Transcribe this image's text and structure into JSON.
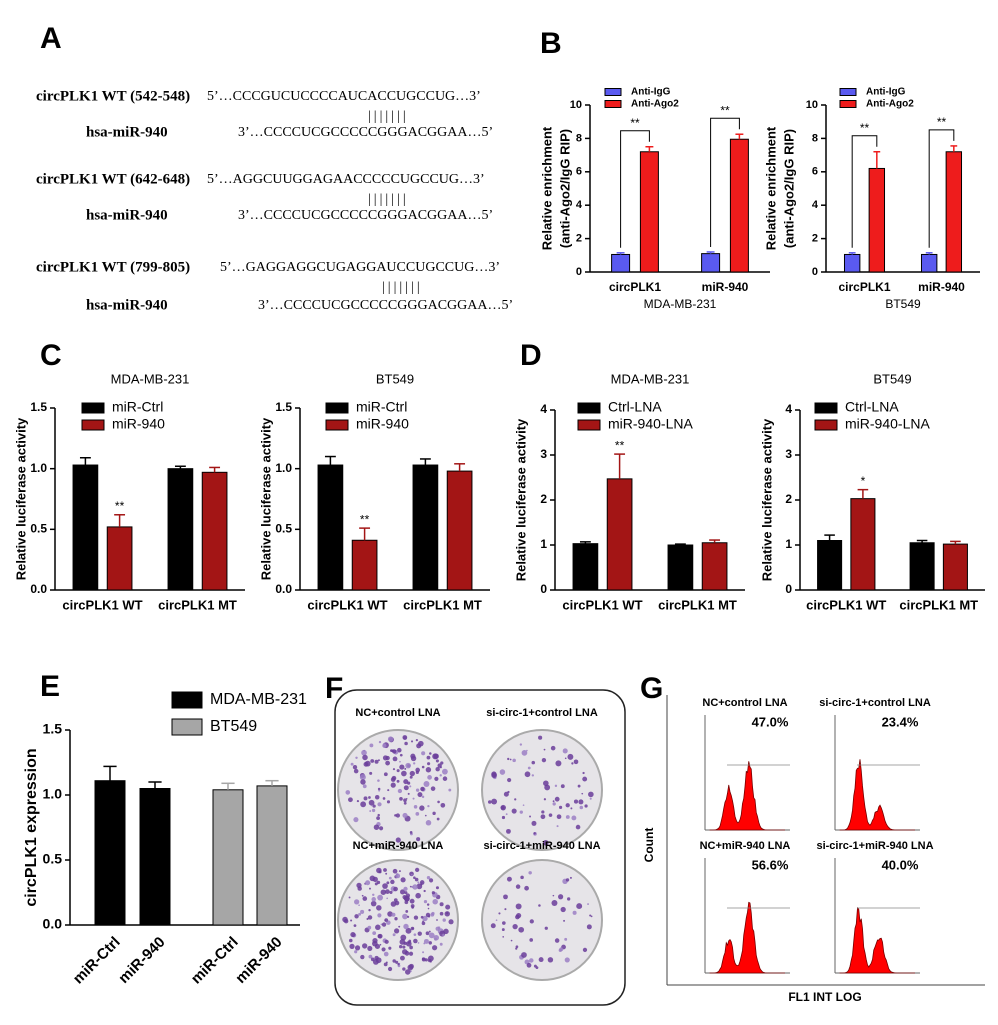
{
  "panel_labels": [
    "A",
    "B",
    "C",
    "D",
    "E",
    "F",
    "G"
  ],
  "sequences": [
    {
      "target": "circPLK1 WT (542-548)",
      "target_seq": "5’…CCCGUCUCCCCAUCACCUGCCUG…3’",
      "pairing": "|||||||",
      "mirna": "hsa-miR-940",
      "mirna_seq": "3’…CCCCUCGCCCCCGGGACGGAA…5’"
    },
    {
      "target": "circPLK1 WT (642-648)",
      "target_seq": "5’…AGGCUUGGAGAACCCCCUGCCUG…3’",
      "pairing": "|||||||",
      "mirna": "hsa-miR-940",
      "mirna_seq": "3’…CCCCUCGCCCCCGGGACGGAA…5’"
    },
    {
      "target": "circPLK1 WT (799-805)",
      "target_seq": "5’…GAGGAGGCUGAGGAUCCUGCCUG…3’",
      "pairing": "|||||||",
      "mirna": "hsa-miR-940",
      "mirna_seq": "3’…CCCCUCGCCCCCGGGACGGAA…5’"
    }
  ],
  "chart_data": [
    {
      "type": "bar",
      "xlabel": "MDA-MB-231",
      "ylabel": [
        "Relative enrichment",
        "(anti-Ago2/IgG RIP)"
      ],
      "categories": [
        "circPLK1",
        "miR-940"
      ],
      "ylim": [
        0,
        10
      ],
      "yticks": [
        0,
        2,
        4,
        6,
        8,
        10
      ],
      "series": [
        {
          "name": "Anti-IgG",
          "color": "#5a5af0",
          "values": [
            1.05,
            1.1
          ],
          "errors": [
            0.1,
            0.1
          ]
        },
        {
          "name": "Anti-Ago2",
          "color": "#ee1c1c",
          "values": [
            7.2,
            7.95
          ],
          "errors": [
            0.3,
            0.3
          ],
          "labels": [
            "**",
            "**"
          ]
        }
      ]
    },
    {
      "type": "bar",
      "xlabel": "BT549",
      "ylabel": [
        "Relative enrichment",
        "(anti-Ago2/IgG RIP)"
      ],
      "categories": [
        "circPLK1",
        "miR-940"
      ],
      "ylim": [
        0,
        10
      ],
      "yticks": [
        0,
        2,
        4,
        6,
        8,
        10
      ],
      "series": [
        {
          "name": "Anti-IgG",
          "color": "#5a5af0",
          "values": [
            1.05,
            1.05
          ],
          "errors": [
            0.1,
            0.1
          ]
        },
        {
          "name": "Anti-Ago2",
          "color": "#ee1c1c",
          "values": [
            6.2,
            7.2
          ],
          "errors": [
            1.0,
            0.35
          ],
          "labels": [
            "**",
            "**"
          ]
        }
      ]
    },
    {
      "type": "bar",
      "title": "MDA-MB-231",
      "ylabel": [
        "Relative luciferase activity"
      ],
      "categories": [
        "circPLK1 WT",
        "circPLK1 MT"
      ],
      "ylim": [
        0,
        1.5
      ],
      "yticks": [
        {
          "value": 0,
          "label": "0.0"
        },
        0.5,
        {
          "value": 1,
          "label": "1.0"
        },
        1.5
      ],
      "series": [
        {
          "name": "miR-Ctrl",
          "color": "#000000",
          "values": [
            1.03,
            1.0
          ],
          "errors": [
            0.06,
            0.02
          ]
        },
        {
          "name": "miR-940",
          "color": "#a31515",
          "values": [
            0.52,
            0.97
          ],
          "errors": [
            0.1,
            0.04
          ],
          "labels": [
            "**",
            null
          ]
        }
      ]
    },
    {
      "type": "bar",
      "title": "BT549",
      "ylabel": [
        "Relative luciferase activity"
      ],
      "categories": [
        "circPLK1 WT",
        "circPLK1 MT"
      ],
      "ylim": [
        0,
        1.5
      ],
      "yticks": [
        {
          "value": 0,
          "label": "0.0"
        },
        0.5,
        {
          "value": 1,
          "label": "1.0"
        },
        1.5
      ],
      "series": [
        {
          "name": "miR-Ctrl",
          "color": "#000000",
          "values": [
            1.03,
            1.03
          ],
          "errors": [
            0.07,
            0.05
          ]
        },
        {
          "name": "miR-940",
          "color": "#a31515",
          "values": [
            0.41,
            0.98
          ],
          "errors": [
            0.1,
            0.06
          ],
          "labels": [
            "**",
            null
          ]
        }
      ]
    },
    {
      "type": "bar",
      "title": "MDA-MB-231",
      "ylabel": [
        "Relative luciferase activity"
      ],
      "categories": [
        "circPLK1 WT",
        "circPLK1 MT"
      ],
      "ylim": [
        0,
        4
      ],
      "yticks": [
        0,
        1,
        2,
        3,
        4
      ],
      "series": [
        {
          "name": "Ctrl-LNA",
          "color": "#000000",
          "values": [
            1.03,
            1.0
          ],
          "errors": [
            0.04,
            0.02
          ]
        },
        {
          "name": "miR-940-LNA",
          "color": "#a31515",
          "values": [
            2.47,
            1.05
          ],
          "errors": [
            0.55,
            0.06
          ],
          "labels": [
            "**",
            null
          ]
        }
      ]
    },
    {
      "type": "bar",
      "title": "BT549",
      "ylabel": [
        "Relative luciferase activity"
      ],
      "categories": [
        "circPLK1 WT",
        "circPLK1 MT"
      ],
      "ylim": [
        0,
        4
      ],
      "yticks": [
        0,
        1,
        2,
        3,
        4
      ],
      "series": [
        {
          "name": "Ctrl-LNA",
          "color": "#000000",
          "values": [
            1.1,
            1.05
          ],
          "errors": [
            0.12,
            0.05
          ]
        },
        {
          "name": "miR-940-LNA",
          "color": "#a31515",
          "values": [
            2.03,
            1.02
          ],
          "errors": [
            0.2,
            0.06
          ],
          "labels": [
            "*",
            null
          ]
        }
      ]
    },
    {
      "type": "bar",
      "ylabel": [
        "circPLK1 expression"
      ],
      "categories": [
        "miR-Ctrl",
        "miR-940",
        "miR-Ctrl",
        "miR-940"
      ],
      "ylim": [
        0,
        1.5
      ],
      "yticks": [
        {
          "value": 0,
          "label": "0.0"
        },
        0.5,
        {
          "value": 1,
          "label": "1.0"
        },
        1.5
      ],
      "series": [
        {
          "name": "MDA-MB-231",
          "color": "#000000",
          "values": [
            1.11,
            1.05,
            null,
            null
          ],
          "errors": [
            0.11,
            0.05,
            null,
            null
          ]
        },
        {
          "name": "BT549",
          "color": "#a6a6a6",
          "values": [
            null,
            null,
            1.04,
            1.07
          ],
          "errors": [
            null,
            null,
            0.05,
            0.04
          ]
        }
      ]
    }
  ],
  "colony": {
    "labels": [
      "NC+control LNA",
      "si-circ-1+control LNA",
      "NC+miR-940 LNA",
      "si-circ-1+miR-940 LNA"
    ]
  },
  "flow": {
    "ylabel": "Count",
    "xlabel": "FL1 INT LOG",
    "plots": [
      {
        "label": "NC+control LNA",
        "percent": "47.0%"
      },
      {
        "label": "si-circ-1+control LNA",
        "percent": "23.4%"
      },
      {
        "label": "NC+miR-940 LNA",
        "percent": "56.6%"
      },
      {
        "label": "si-circ-1+miR-940 LNA",
        "percent": "40.0%"
      }
    ]
  }
}
